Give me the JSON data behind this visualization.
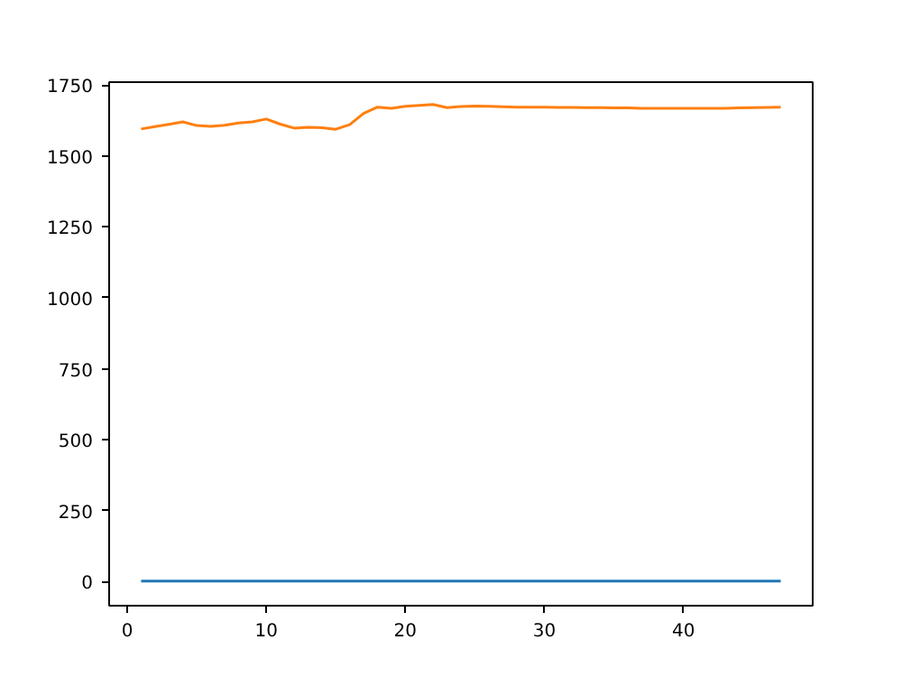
{
  "chart_data": {
    "type": "line",
    "x": [
      1,
      2,
      3,
      4,
      5,
      6,
      7,
      8,
      9,
      10,
      11,
      12,
      13,
      14,
      15,
      16,
      17,
      18,
      19,
      20,
      21,
      22,
      23,
      24,
      25,
      26,
      27,
      28,
      29,
      30,
      31,
      32,
      33,
      34,
      35,
      36,
      37,
      38,
      39,
      40,
      41,
      42,
      43,
      44,
      45,
      46,
      47
    ],
    "series": [
      {
        "color": "#1f77b4",
        "values": [
          2,
          2,
          2,
          2,
          2,
          2,
          2,
          2,
          2,
          2,
          2,
          2,
          2,
          2,
          2,
          2,
          2,
          2,
          2,
          2,
          2,
          2,
          2,
          2,
          2,
          2,
          2,
          2,
          2,
          2,
          2,
          2,
          2,
          2,
          2,
          2,
          2,
          2,
          2,
          2,
          2,
          2,
          2,
          2,
          2,
          2,
          2
        ]
      },
      {
        "color": "#ff7f0e",
        "values": [
          1595,
          1603,
          1611,
          1620,
          1607,
          1604,
          1608,
          1616,
          1620,
          1630,
          1612,
          1598,
          1601,
          1599,
          1594,
          1610,
          1650,
          1672,
          1668,
          1675,
          1678,
          1681,
          1670,
          1674,
          1676,
          1675,
          1673,
          1672,
          1672,
          1672,
          1671,
          1671,
          1670,
          1670,
          1669,
          1669,
          1668,
          1668,
          1668,
          1668,
          1668,
          1668,
          1668,
          1669,
          1670,
          1671,
          1672
        ]
      }
    ],
    "xlim": [
      -1.3,
      49.3
    ],
    "ylim": [
      -85,
      1760
    ],
    "xticks": [
      0,
      10,
      20,
      30,
      40
    ],
    "yticks": [
      0,
      250,
      500,
      750,
      1000,
      1250,
      1500,
      1750
    ],
    "grid": false
  }
}
